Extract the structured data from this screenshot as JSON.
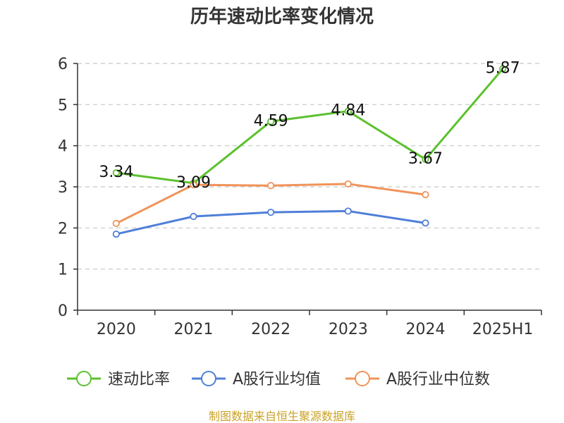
{
  "chart_data": {
    "type": "line",
    "title": "历年速动比率变化情况",
    "categories": [
      "2020",
      "2021",
      "2022",
      "2023",
      "2024",
      "2025H1"
    ],
    "ylim": [
      0,
      6
    ],
    "yticks": [
      "0",
      "1",
      "2",
      "3",
      "4",
      "5",
      "6"
    ],
    "grid": true,
    "legend_position": "bottom",
    "series": [
      {
        "name": "速动比率",
        "color": "#5cc12e",
        "values": [
          3.34,
          3.09,
          4.59,
          4.84,
          3.67,
          5.87
        ],
        "labels": [
          "3.34",
          "3.09",
          "4.59",
          "4.84",
          "3.67",
          "5.87"
        ]
      },
      {
        "name": "A股行业均值",
        "color": "#4f7fd9",
        "values": [
          1.85,
          2.28,
          2.38,
          2.41,
          2.12,
          null
        ]
      },
      {
        "name": "A股行业中位数",
        "color": "#f0935a",
        "values": [
          2.11,
          3.05,
          3.03,
          3.07,
          2.81,
          null
        ]
      }
    ],
    "source": "制图数据来自恒生聚源数据库"
  }
}
